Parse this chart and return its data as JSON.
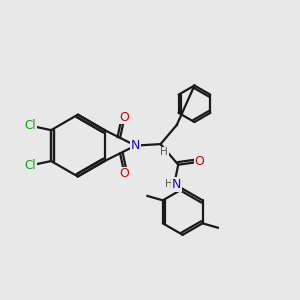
{
  "bg_color": "#e8e8e8",
  "bond_color": "#1a1a1a",
  "N_color": "#2200cc",
  "O_color": "#cc0000",
  "Cl_color": "#00aa00",
  "H_color": "#555555",
  "lw": 1.6,
  "figsize": [
    3.0,
    3.0
  ],
  "dpi": 100,
  "xlim": [
    0,
    10
  ],
  "ylim": [
    0,
    10
  ]
}
